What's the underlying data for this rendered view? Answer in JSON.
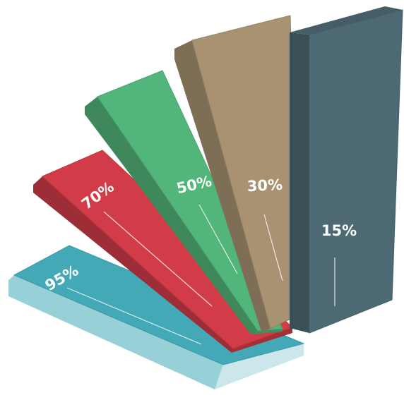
{
  "chart_data": {
    "type": "bar",
    "title": "",
    "xlabel": "",
    "ylabel": "",
    "categories": [
      "",
      "",
      "",
      "",
      ""
    ],
    "values": [
      95,
      70,
      50,
      30,
      15
    ],
    "data_labels": [
      "95%",
      "70%",
      "50%",
      "30%",
      "15%"
    ],
    "colors": [
      "#44a9b6",
      "#d13c48",
      "#52b57a",
      "#a89272",
      "#4d6a74"
    ],
    "grid": false,
    "legend": "none"
  }
}
